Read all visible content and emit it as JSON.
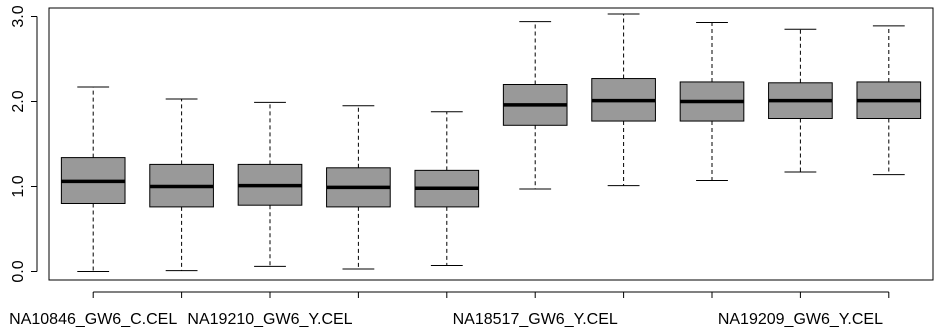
{
  "chart_data": {
    "type": "boxplot",
    "title": "",
    "xlabel": "",
    "ylabel": "",
    "ylim": [
      -0.1,
      3.1
    ],
    "grid": false,
    "legend": "none",
    "y_ticks": [
      {
        "value": 0.0,
        "label": "0.0"
      },
      {
        "value": 1.0,
        "label": "1.0"
      },
      {
        "value": 2.0,
        "label": "2.0"
      },
      {
        "value": 3.0,
        "label": "3.0"
      }
    ],
    "x_tick_labels": [
      {
        "index": 0,
        "label": "NA10846_GW6_C.CEL"
      },
      {
        "index": 2,
        "label": "NA19210_GW6_Y.CEL"
      },
      {
        "index": 5,
        "label": "NA18517_GW6_Y.CEL"
      },
      {
        "index": 8,
        "label": "NA19209_GW6_Y.CEL"
      }
    ],
    "box_color": "#999999",
    "boxes": [
      {
        "min": 0.0,
        "q1": 0.8,
        "median": 1.06,
        "q3": 1.34,
        "max": 2.17
      },
      {
        "min": 0.01,
        "q1": 0.76,
        "median": 1.0,
        "q3": 1.26,
        "max": 2.03
      },
      {
        "min": 0.06,
        "q1": 0.78,
        "median": 1.01,
        "q3": 1.26,
        "max": 1.99
      },
      {
        "min": 0.03,
        "q1": 0.76,
        "median": 0.99,
        "q3": 1.22,
        "max": 1.95
      },
      {
        "min": 0.07,
        "q1": 0.76,
        "median": 0.98,
        "q3": 1.19,
        "max": 1.88
      },
      {
        "min": 0.97,
        "q1": 1.72,
        "median": 1.96,
        "q3": 2.2,
        "max": 2.94
      },
      {
        "min": 1.01,
        "q1": 1.77,
        "median": 2.01,
        "q3": 2.27,
        "max": 3.03
      },
      {
        "min": 1.07,
        "q1": 1.77,
        "median": 2.0,
        "q3": 2.23,
        "max": 2.93
      },
      {
        "min": 1.17,
        "q1": 1.8,
        "median": 2.01,
        "q3": 2.22,
        "max": 2.85
      },
      {
        "min": 1.14,
        "q1": 1.8,
        "median": 2.01,
        "q3": 2.23,
        "max": 2.89
      }
    ]
  }
}
